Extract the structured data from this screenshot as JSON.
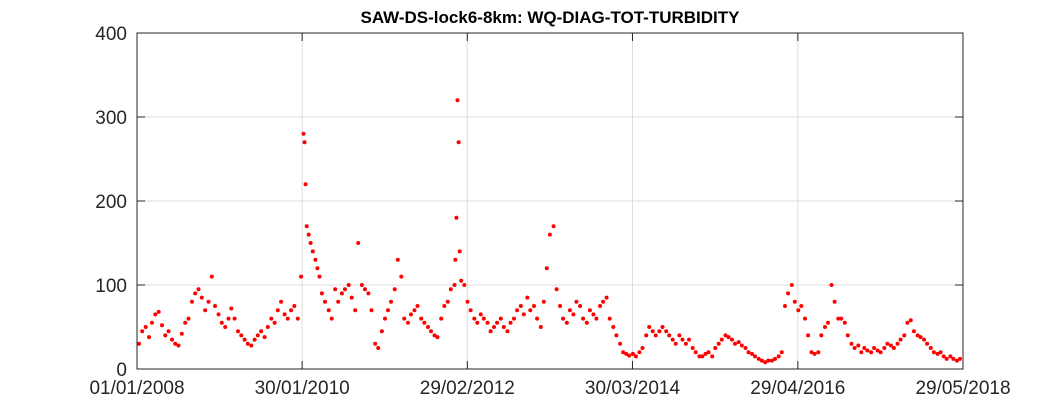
{
  "chart_data": {
    "type": "scatter",
    "title": "SAW-DS-lock6-8km: WQ-DIAG-TOT-TURBIDITY",
    "xlabel": "",
    "ylabel": "",
    "xlim": [
      "2008-01-01",
      "2018-05-29"
    ],
    "ylim": [
      0,
      400
    ],
    "xticks": [
      "2008-01-01",
      "2010-01-30",
      "2012-02-29",
      "2014-03-30",
      "2016-04-29",
      "2018-05-29"
    ],
    "xtick_labels": [
      "01/01/2008",
      "30/01/2010",
      "29/02/2012",
      "30/03/2014",
      "29/04/2016",
      "29/05/2018"
    ],
    "yticks": [
      0,
      100,
      200,
      300,
      400
    ],
    "ytick_labels": [
      "0",
      "100",
      "200",
      "300",
      "400"
    ],
    "grid": true,
    "legend": "none",
    "marker_color": "#ff0000",
    "series": [
      {
        "x": [
          "2008-01-10",
          "2008-01-25",
          "2008-02-10",
          "2008-02-25",
          "2008-03-10",
          "2008-03-25",
          "2008-04-10",
          "2008-04-25",
          "2008-05-10",
          "2008-05-25",
          "2008-06-10",
          "2008-06-25",
          "2008-07-10",
          "2008-07-25",
          "2008-08-10",
          "2008-08-25",
          "2008-09-10",
          "2008-09-25",
          "2008-10-10",
          "2008-10-25",
          "2008-11-10",
          "2008-11-25",
          "2008-12-10",
          "2008-12-25",
          "2009-01-10",
          "2009-01-25",
          "2009-02-10",
          "2009-02-25",
          "2009-03-10",
          "2009-03-25",
          "2009-04-10",
          "2009-04-25",
          "2009-05-10",
          "2009-05-25",
          "2009-06-10",
          "2009-06-25",
          "2009-07-10",
          "2009-07-25",
          "2009-08-10",
          "2009-08-25",
          "2009-09-10",
          "2009-09-25",
          "2009-10-10",
          "2009-10-25",
          "2009-11-10",
          "2009-11-25",
          "2009-12-10",
          "2009-12-25",
          "2010-01-10",
          "2010-01-25",
          "2010-02-05",
          "2010-02-10",
          "2010-02-15",
          "2010-02-20",
          "2010-03-01",
          "2010-03-10",
          "2010-03-20",
          "2010-04-01",
          "2010-04-10",
          "2010-04-20",
          "2010-05-01",
          "2010-05-15",
          "2010-06-01",
          "2010-06-15",
          "2010-07-01",
          "2010-07-15",
          "2010-08-01",
          "2010-08-15",
          "2010-09-01",
          "2010-09-15",
          "2010-10-01",
          "2010-10-15",
          "2010-11-01",
          "2010-11-15",
          "2010-12-01",
          "2010-12-15",
          "2011-01-01",
          "2011-01-15",
          "2011-02-01",
          "2011-02-15",
          "2011-03-01",
          "2011-03-15",
          "2011-04-01",
          "2011-04-15",
          "2011-05-01",
          "2011-05-15",
          "2011-06-01",
          "2011-06-15",
          "2011-07-01",
          "2011-07-15",
          "2011-08-01",
          "2011-08-15",
          "2011-09-01",
          "2011-09-15",
          "2011-10-01",
          "2011-10-15",
          "2011-11-01",
          "2011-11-15",
          "2011-12-01",
          "2011-12-15",
          "2012-01-01",
          "2012-01-05",
          "2012-01-10",
          "2012-01-15",
          "2012-01-20",
          "2012-01-25",
          "2012-02-01",
          "2012-02-15",
          "2012-03-01",
          "2012-03-15",
          "2012-04-01",
          "2012-04-15",
          "2012-05-01",
          "2012-05-15",
          "2012-06-01",
          "2012-06-15",
          "2012-07-01",
          "2012-07-15",
          "2012-08-01",
          "2012-08-15",
          "2012-09-01",
          "2012-09-15",
          "2012-10-01",
          "2012-10-15",
          "2012-11-01",
          "2012-11-15",
          "2012-12-01",
          "2012-12-15",
          "2013-01-01",
          "2013-01-15",
          "2013-02-01",
          "2013-02-15",
          "2013-03-01",
          "2013-03-15",
          "2013-04-01",
          "2013-04-15",
          "2013-05-01",
          "2013-05-15",
          "2013-06-01",
          "2013-06-15",
          "2013-07-01",
          "2013-07-15",
          "2013-08-01",
          "2013-08-15",
          "2013-09-01",
          "2013-09-15",
          "2013-10-01",
          "2013-10-15",
          "2013-11-01",
          "2013-11-15",
          "2013-12-01",
          "2013-12-15",
          "2014-01-01",
          "2014-01-15",
          "2014-02-01",
          "2014-02-15",
          "2014-03-01",
          "2014-03-15",
          "2014-04-01",
          "2014-04-15",
          "2014-05-01",
          "2014-05-15",
          "2014-06-01",
          "2014-06-15",
          "2014-07-01",
          "2014-07-15",
          "2014-08-01",
          "2014-08-15",
          "2014-09-01",
          "2014-09-15",
          "2014-10-01",
          "2014-10-15",
          "2014-11-01",
          "2014-11-15",
          "2014-12-01",
          "2014-12-15",
          "2015-01-01",
          "2015-01-15",
          "2015-02-01",
          "2015-02-15",
          "2015-03-01",
          "2015-03-15",
          "2015-04-01",
          "2015-04-15",
          "2015-05-01",
          "2015-05-15",
          "2015-06-01",
          "2015-06-15",
          "2015-07-01",
          "2015-07-15",
          "2015-08-01",
          "2015-08-15",
          "2015-09-01",
          "2015-09-15",
          "2015-10-01",
          "2015-10-15",
          "2015-11-01",
          "2015-11-15",
          "2015-12-01",
          "2015-12-15",
          "2016-01-01",
          "2016-01-15",
          "2016-02-01",
          "2016-02-15",
          "2016-03-01",
          "2016-03-15",
          "2016-04-01",
          "2016-04-15",
          "2016-05-01",
          "2016-05-15",
          "2016-06-01",
          "2016-06-15",
          "2016-07-01",
          "2016-07-15",
          "2016-08-01",
          "2016-08-15",
          "2016-09-01",
          "2016-09-15",
          "2016-10-01",
          "2016-10-15",
          "2016-11-01",
          "2016-11-15",
          "2016-12-01",
          "2016-12-15",
          "2017-01-01",
          "2017-01-15",
          "2017-02-01",
          "2017-02-15",
          "2017-03-01",
          "2017-03-15",
          "2017-04-01",
          "2017-04-15",
          "2017-05-01",
          "2017-05-15",
          "2017-06-01",
          "2017-06-15",
          "2017-07-01",
          "2017-07-15",
          "2017-08-01",
          "2017-08-15",
          "2017-09-01",
          "2017-09-15",
          "2017-10-01",
          "2017-10-15",
          "2017-11-01",
          "2017-11-15",
          "2017-12-01",
          "2017-12-15",
          "2018-01-01",
          "2018-01-15",
          "2018-02-01",
          "2018-02-15",
          "2018-03-01",
          "2018-03-15",
          "2018-04-01",
          "2018-04-15",
          "2018-05-01",
          "2018-05-15"
        ],
        "y": [
          30,
          45,
          50,
          38,
          55,
          65,
          68,
          52,
          40,
          45,
          35,
          30,
          28,
          42,
          55,
          60,
          80,
          90,
          95,
          85,
          70,
          80,
          110,
          75,
          65,
          55,
          50,
          60,
          72,
          60,
          45,
          40,
          35,
          30,
          28,
          35,
          40,
          45,
          38,
          50,
          60,
          55,
          70,
          80,
          65,
          60,
          70,
          75,
          60,
          110,
          280,
          270,
          220,
          170,
          160,
          150,
          140,
          130,
          120,
          110,
          90,
          80,
          70,
          60,
          95,
          80,
          90,
          95,
          100,
          85,
          70,
          150,
          100,
          95,
          90,
          70,
          30,
          25,
          45,
          60,
          70,
          80,
          95,
          130,
          110,
          60,
          55,
          65,
          70,
          75,
          60,
          55,
          50,
          45,
          40,
          38,
          60,
          75,
          80,
          95,
          100,
          130,
          180,
          320,
          270,
          140,
          105,
          100,
          80,
          70,
          60,
          55,
          65,
          60,
          55,
          45,
          50,
          55,
          60,
          50,
          45,
          55,
          60,
          70,
          75,
          65,
          85,
          70,
          75,
          60,
          50,
          80,
          120,
          160,
          170,
          95,
          75,
          60,
          55,
          70,
          65,
          80,
          75,
          60,
          55,
          70,
          65,
          60,
          75,
          80,
          85,
          60,
          50,
          40,
          30,
          20,
          18,
          16,
          18,
          15,
          20,
          25,
          40,
          50,
          45,
          40,
          45,
          50,
          45,
          40,
          35,
          30,
          40,
          35,
          30,
          35,
          25,
          20,
          15,
          15,
          18,
          20,
          15,
          25,
          30,
          35,
          40,
          38,
          35,
          30,
          32,
          28,
          25,
          20,
          18,
          15,
          12,
          10,
          8,
          10,
          10,
          12,
          15,
          20,
          75,
          90,
          100,
          80,
          70,
          75,
          60,
          40,
          20,
          18,
          20,
          40,
          50,
          55,
          100,
          80,
          60,
          60,
          55,
          40,
          30,
          25,
          28,
          20,
          25,
          22,
          20,
          25,
          22,
          20,
          25,
          30,
          28,
          25,
          30,
          35,
          40,
          55,
          58,
          45,
          40,
          38,
          35,
          30,
          25,
          20,
          18,
          20,
          15,
          12,
          15,
          12,
          10,
          12
        ]
      }
    ]
  }
}
